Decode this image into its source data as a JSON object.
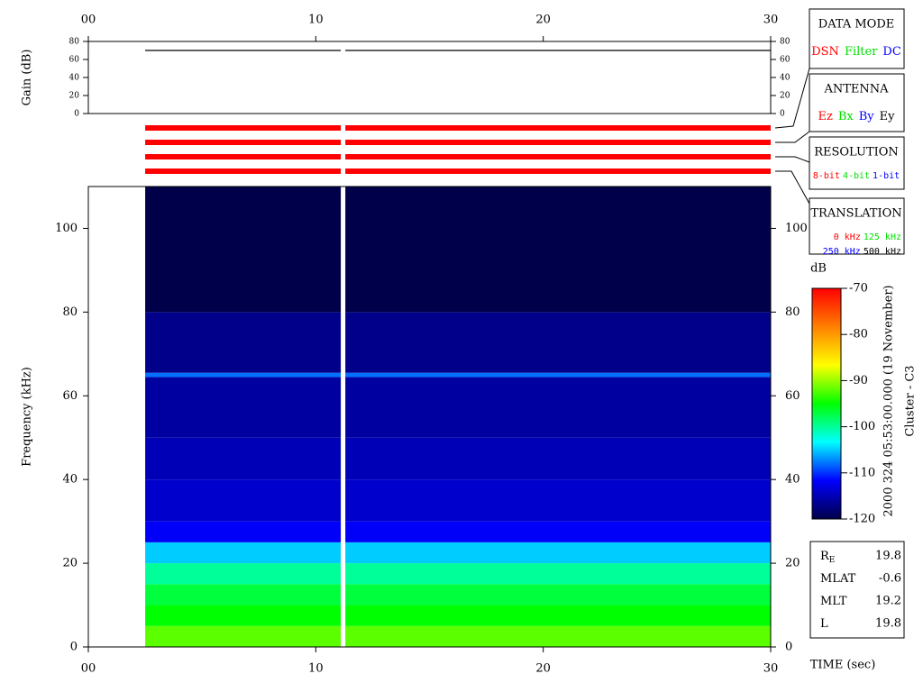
{
  "chart_data": [
    {
      "type": "line",
      "ylabel": "Gain (dB)",
      "x": [
        2.5,
        11.1,
        11.2,
        11.3,
        30
      ],
      "series": [
        {
          "color": "#000000",
          "values": [
            70,
            70,
            null,
            70,
            70
          ]
        }
      ],
      "xlim": [
        0,
        30
      ],
      "xticks": [
        {
          "value": 0,
          "label": "00"
        },
        10,
        20,
        30
      ],
      "ylim": [
        0,
        80
      ],
      "yticks": [
        0,
        20,
        40,
        60,
        80
      ],
      "status_bars": {
        "color": "#ff0000",
        "segments": [
          [
            2.5,
            11.1
          ],
          [
            11.3,
            30
          ]
        ]
      }
    },
    {
      "type": "heatmap",
      "xlabel": "TIME (sec)",
      "ylabel": "Frequency (kHz)",
      "x_edges": [
        2.5,
        11.1,
        11.3,
        30
      ],
      "y_edges": [
        0,
        5,
        10,
        15,
        20,
        25,
        30,
        40,
        50,
        64.5,
        65.5,
        80,
        110
      ],
      "z": [
        [
          -92,
          null,
          -92
        ],
        [
          -95,
          null,
          -95
        ],
        [
          -97,
          null,
          -97
        ],
        [
          -100,
          null,
          -100
        ],
        [
          -105,
          null,
          -105
        ],
        [
          -112,
          null,
          -112
        ],
        [
          -114,
          null,
          -114
        ],
        [
          -115,
          null,
          -115
        ],
        [
          -116,
          null,
          -116
        ],
        [
          -108,
          null,
          -108
        ],
        [
          -117,
          null,
          -117
        ],
        [
          -120,
          null,
          -120
        ]
      ],
      "xlim": [
        0,
        30
      ],
      "xticks": [
        {
          "value": 0,
          "label": "00"
        },
        10,
        20,
        30
      ],
      "ylim": [
        0,
        110
      ],
      "yticks": [
        0,
        20,
        40,
        60,
        80,
        100
      ],
      "colorscale": [
        "#00004a",
        "#0000ff",
        "#00ffff",
        "#00ff00",
        "#ffff00",
        "#ff8000",
        "#ff0000"
      ],
      "clim": [
        -120,
        -70
      ],
      "colorbar_label": "dB",
      "colorbar_ticks": [
        -120,
        -110,
        -100,
        -90,
        -80,
        -70
      ]
    }
  ],
  "panels": [
    {
      "title": "DATA MODE",
      "rows": [
        [
          {
            "text": "DSN",
            "color": "#ff0000"
          },
          {
            "text": "Filter",
            "color": "#00e000"
          },
          {
            "text": "DC",
            "color": "#0000ff"
          }
        ]
      ]
    },
    {
      "title": "ANTENNA",
      "rows": [
        [
          {
            "text": "Ez",
            "color": "#ff0000"
          },
          {
            "text": "Bx",
            "color": "#00e000"
          },
          {
            "text": "By",
            "color": "#0000ff"
          },
          {
            "text": "Ey",
            "color": "#000000"
          }
        ]
      ]
    },
    {
      "title": "RESOLUTION",
      "rows": [
        [
          {
            "text": "8-bit",
            "color": "#ff0000"
          },
          {
            "text": "4-bit",
            "color": "#00e000"
          },
          {
            "text": "1-bit",
            "color": "#0000ff"
          }
        ]
      ]
    },
    {
      "title": "TRANSLATION",
      "rows": [
        [
          {
            "text": "0 kHz",
            "color": "#ff0000"
          },
          {
            "text": "125 kHz",
            "color": "#00e000"
          }
        ],
        [
          {
            "text": "250 kHz",
            "color": "#0000ff"
          },
          {
            "text": "500 kHz",
            "color": "#000000"
          }
        ]
      ]
    }
  ],
  "timestamp": "2000 324 05:53:00.000 (19 November)",
  "spacecraft": "Cluster - C3",
  "ephemeris": [
    {
      "label": "R",
      "label_sub": "E",
      "value": 19.8
    },
    {
      "label": "MLAT",
      "value": -0.6
    },
    {
      "label": "MLT",
      "value": 19.2
    },
    {
      "label": "L",
      "value": 19.8
    }
  ]
}
